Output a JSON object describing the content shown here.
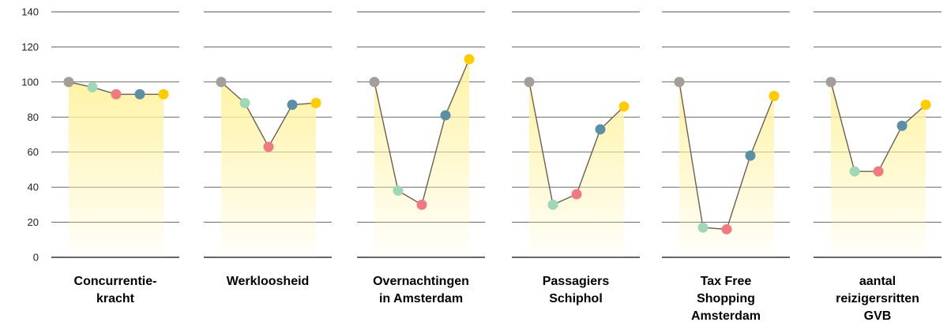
{
  "chart_data": {
    "type": "line",
    "ylim": [
      0,
      140
    ],
    "yticks": [
      0,
      20,
      40,
      60,
      80,
      100,
      120,
      140
    ],
    "grid": true,
    "point_colors": [
      "#a39e97",
      "#9fd8b4",
      "#ef7b80",
      "#5a8fa6",
      "#ffcc00"
    ],
    "line_color": "#6e5e52",
    "area_color": "#fff3a6",
    "panels": [
      {
        "title": [
          "Concurrentie-",
          "kracht"
        ],
        "values": [
          100,
          97,
          93,
          93,
          93
        ]
      },
      {
        "title": [
          "Werkloosheid"
        ],
        "values": [
          100,
          88,
          63,
          87,
          88
        ]
      },
      {
        "title": [
          "Overnachtingen",
          "in Amsterdam"
        ],
        "values": [
          100,
          38,
          30,
          81,
          113
        ]
      },
      {
        "title": [
          "Passagiers",
          "Schiphol"
        ],
        "values": [
          100,
          30,
          36,
          73,
          86
        ]
      },
      {
        "title": [
          "Tax Free",
          "Shopping",
          "Amsterdam"
        ],
        "values": [
          100,
          17,
          16,
          58,
          92
        ]
      },
      {
        "title": [
          "aantal",
          "reizigersritten",
          "GVB"
        ],
        "values": [
          100,
          49,
          49,
          75,
          87
        ]
      }
    ]
  }
}
